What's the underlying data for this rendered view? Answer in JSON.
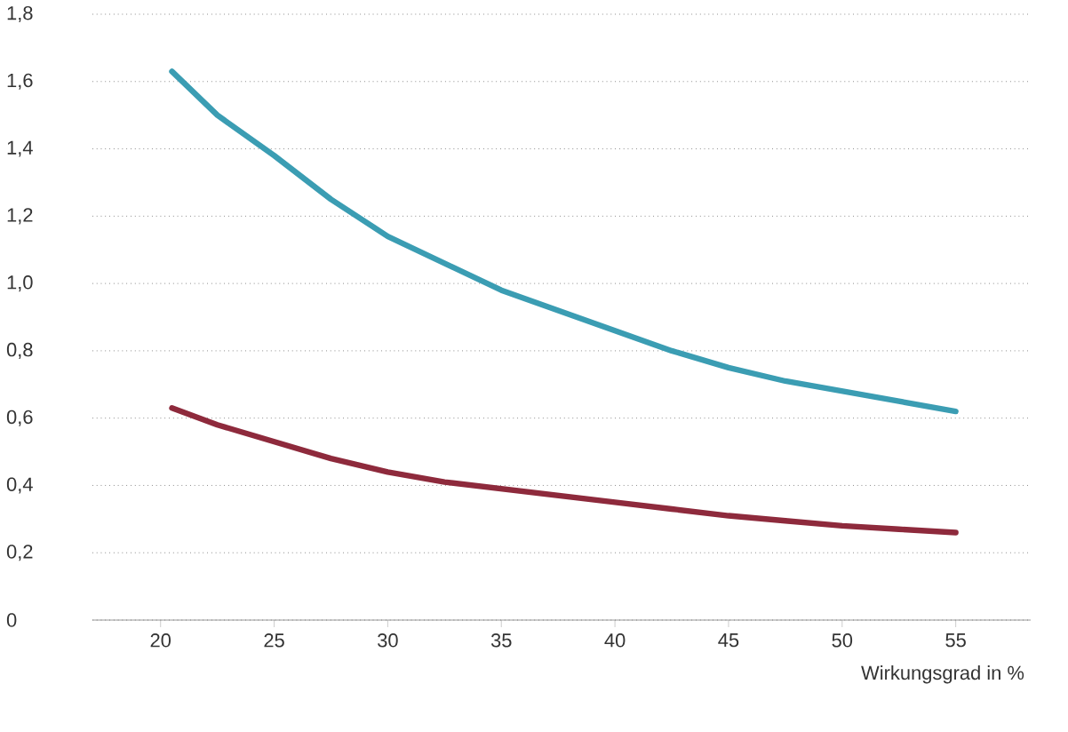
{
  "chart_data": {
    "type": "line",
    "xlabel": "Wirkungsgrad in %",
    "xlim": [
      17,
      58.3
    ],
    "xticks": [
      20,
      25,
      30,
      35,
      40,
      45,
      50,
      55
    ],
    "ylim": [
      0,
      1.8
    ],
    "yticks": [
      0,
      {
        "value": 0.2,
        "label": "0,2"
      },
      {
        "value": 0.4,
        "label": "0,4"
      },
      {
        "value": 0.6,
        "label": "0,6"
      },
      {
        "value": 0.8,
        "label": "0,8"
      },
      {
        "value": 1.0,
        "label": "1,0"
      },
      {
        "value": 1.2,
        "label": "1,2"
      },
      {
        "value": 1.4,
        "label": "1,4"
      },
      {
        "value": 1.6,
        "label": "1,6"
      },
      {
        "value": 1.8,
        "label": "1,8"
      }
    ],
    "grid": "y",
    "marker": "none",
    "line_style": "solid",
    "x": [
      20.5,
      22.5,
      25,
      27.5,
      30,
      32.5,
      35,
      37.5,
      40,
      42.5,
      45,
      47.5,
      50,
      52.5,
      55
    ],
    "series": [
      {
        "color": "#3b9db3",
        "values": [
          1.63,
          1.5,
          1.38,
          1.25,
          1.14,
          1.06,
          0.98,
          0.92,
          0.86,
          0.8,
          0.75,
          0.71,
          0.68,
          0.65,
          0.62
        ]
      },
      {
        "color": "#8e2a3c",
        "values": [
          0.63,
          0.58,
          0.53,
          0.48,
          0.44,
          0.41,
          0.39,
          0.37,
          0.35,
          0.33,
          0.31,
          0.295,
          0.28,
          0.27,
          0.26
        ]
      }
    ]
  }
}
